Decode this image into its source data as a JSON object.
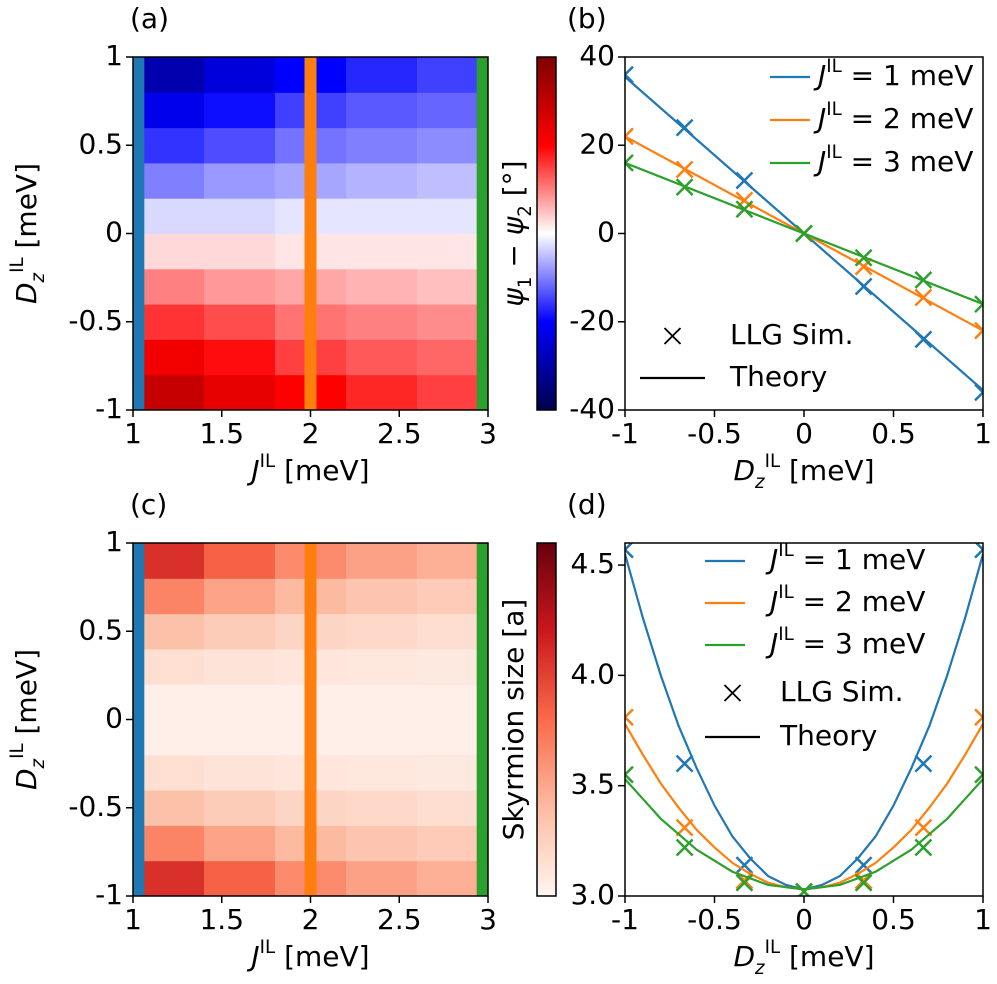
{
  "chart_data": [
    {
      "type": "heatmap",
      "label": "(a)",
      "x": [
        1.2,
        1.6,
        2.0,
        2.4,
        2.8
      ],
      "y": [
        -0.9,
        -0.7,
        -0.5,
        -0.3,
        -0.1,
        0.1,
        0.3,
        0.5,
        0.7,
        0.9
      ],
      "z": [
        [
          29,
          24,
          20,
          17,
          15
        ],
        [
          22,
          19,
          15,
          13,
          12
        ],
        [
          16,
          14,
          11,
          10,
          9
        ],
        [
          10,
          8,
          7,
          6,
          5
        ],
        [
          3,
          3,
          2,
          2,
          2
        ],
        [
          -3,
          -3,
          -2,
          -2,
          -2
        ],
        [
          -10,
          -8,
          -7,
          -6,
          -5
        ],
        [
          -16,
          -14,
          -11,
          -10,
          -9
        ],
        [
          -22,
          -19,
          -15,
          -13,
          -12
        ],
        [
          -29,
          -24,
          -20,
          -17,
          -15
        ]
      ],
      "zlim": [
        -40,
        40
      ],
      "cmap": "seismic",
      "xlim": [
        1,
        3
      ],
      "ylim": [
        -1,
        1
      ],
      "xticks": [
        1,
        1.5,
        2,
        2.5,
        3
      ],
      "yticks": [
        -1,
        -0.5,
        0,
        0.5,
        1
      ],
      "xlabel": [
        {
          "text": "J",
          "italic": true
        },
        {
          "text": "IL",
          "pos": "sup"
        },
        {
          "text": " [meV]"
        }
      ],
      "ylabel": [
        {
          "text": "D",
          "italic": true
        },
        {
          "text": "z",
          "italic": true,
          "pos": "sub"
        },
        {
          "text": "IL",
          "pos": "sup"
        },
        {
          "text": " [meV]"
        }
      ],
      "colorbar_label": [
        {
          "text": "ψ",
          "italic": true
        },
        {
          "text": "1",
          "pos": "sub"
        },
        {
          "text": " − "
        },
        {
          "text": "ψ",
          "italic": true
        },
        {
          "text": "2",
          "pos": "sub"
        },
        {
          "text": " [°]"
        }
      ],
      "vlines": [
        {
          "x": 1.03,
          "color": "#1f77b4"
        },
        {
          "x": 2.0,
          "color": "#ff7f0e"
        },
        {
          "x": 2.97,
          "color": "#2ca02c"
        }
      ]
    },
    {
      "type": "line",
      "label": "(b)",
      "x": [
        -1,
        1
      ],
      "sim_x": [
        -1,
        -0.667,
        -0.333,
        0,
        0.333,
        0.667,
        1
      ],
      "series": [
        {
          "name": [
            {
              "text": "J",
              "italic": true
            },
            {
              "text": "IL",
              "pos": "sup"
            },
            {
              "text": " = 1 meV"
            }
          ],
          "color": "#1f77b4",
          "values": [
            35.5,
            -35.5
          ],
          "sim_values": [
            36,
            24,
            12,
            0,
            -12,
            -24,
            -36
          ]
        },
        {
          "name": [
            {
              "text": "J",
              "italic": true
            },
            {
              "text": "IL",
              "pos": "sup"
            },
            {
              "text": " = 2 meV"
            }
          ],
          "color": "#ff7f0e",
          "values": [
            22,
            -22
          ],
          "sim_values": [
            22,
            14.5,
            7.5,
            0,
            -7.5,
            -14.5,
            -22
          ]
        },
        {
          "name": [
            {
              "text": "J",
              "italic": true
            },
            {
              "text": "IL",
              "pos": "sup"
            },
            {
              "text": " = 3 meV"
            }
          ],
          "color": "#2ca02c",
          "values": [
            16,
            -16
          ],
          "sim_values": [
            16,
            10.5,
            5.5,
            0,
            -5.5,
            -10.5,
            -16
          ]
        }
      ],
      "style_legend": [
        {
          "label": "LLG Sim.",
          "marker": "x"
        },
        {
          "label": "Theory",
          "marker": "line"
        }
      ],
      "xlim": [
        -1,
        1
      ],
      "ylim": [
        -40,
        40
      ],
      "xticks": [
        -1,
        -0.5,
        0,
        0.5,
        1
      ],
      "yticks": [
        -40,
        -20,
        0,
        20,
        40
      ],
      "xlabel": [
        {
          "text": "D",
          "italic": true
        },
        {
          "text": "z",
          "italic": true,
          "pos": "sub"
        },
        {
          "text": "IL",
          "pos": "sup"
        },
        {
          "text": " [meV]"
        }
      ]
    },
    {
      "type": "heatmap",
      "label": "(c)",
      "x": [
        1.2,
        1.6,
        2.0,
        2.4,
        2.8
      ],
      "y": [
        -0.9,
        -0.7,
        -0.5,
        -0.3,
        -0.1,
        0.1,
        0.3,
        0.5,
        0.7,
        0.9
      ],
      "z": [
        [
          4.08,
          3.84,
          3.64,
          3.53,
          3.46
        ],
        [
          3.67,
          3.52,
          3.4,
          3.33,
          3.29
        ],
        [
          3.36,
          3.28,
          3.22,
          3.19,
          3.16
        ],
        [
          3.15,
          3.12,
          3.1,
          3.09,
          3.08
        ],
        [
          3.04,
          3.04,
          3.04,
          3.04,
          3.04
        ],
        [
          3.04,
          3.04,
          3.04,
          3.04,
          3.04
        ],
        [
          3.15,
          3.12,
          3.1,
          3.09,
          3.08
        ],
        [
          3.36,
          3.28,
          3.22,
          3.19,
          3.16
        ],
        [
          3.67,
          3.52,
          3.4,
          3.33,
          3.29
        ],
        [
          4.08,
          3.84,
          3.64,
          3.53,
          3.46
        ]
      ],
      "zlim": [
        3.0,
        4.6
      ],
      "cmap": "Reds",
      "xlim": [
        1,
        3
      ],
      "ylim": [
        -1,
        1
      ],
      "xticks": [
        1,
        1.5,
        2,
        2.5,
        3
      ],
      "yticks": [
        -1,
        -0.5,
        0,
        0.5,
        1
      ],
      "xlabel": [
        {
          "text": "J",
          "italic": true
        },
        {
          "text": "IL",
          "pos": "sup"
        },
        {
          "text": " [meV]"
        }
      ],
      "ylabel": [
        {
          "text": "D",
          "italic": true
        },
        {
          "text": "z",
          "italic": true,
          "pos": "sub"
        },
        {
          "text": "IL",
          "pos": "sup"
        },
        {
          "text": " [meV]"
        }
      ],
      "colorbar_label": [
        {
          "text": "Skyrmion size [a]"
        }
      ],
      "vlines": [
        {
          "x": 1.03,
          "color": "#1f77b4"
        },
        {
          "x": 2.0,
          "color": "#ff7f0e"
        },
        {
          "x": 2.97,
          "color": "#2ca02c"
        }
      ]
    },
    {
      "type": "line",
      "label": "(d)",
      "x": [
        -1,
        -0.9,
        -0.8,
        -0.7,
        -0.6,
        -0.5,
        -0.4,
        -0.3,
        -0.2,
        -0.1,
        0,
        0.1,
        0.2,
        0.3,
        0.4,
        0.5,
        0.6,
        0.7,
        0.8,
        0.9,
        1
      ],
      "sim_x": [
        -1,
        -0.667,
        -0.333,
        0,
        0.333,
        0.667,
        1
      ],
      "series": [
        {
          "name": [
            {
              "text": "J",
              "italic": true
            },
            {
              "text": "IL",
              "pos": "sup"
            },
            {
              "text": " = 1 meV"
            }
          ],
          "color": "#1f77b4",
          "values": [
            4.55,
            4.26,
            4.0,
            3.77,
            3.58,
            3.41,
            3.27,
            3.17,
            3.09,
            3.05,
            3.03,
            3.05,
            3.09,
            3.17,
            3.27,
            3.41,
            3.58,
            3.77,
            4.0,
            4.26,
            4.55
          ],
          "sim_values": [
            4.57,
            3.6,
            3.14,
            3.02,
            3.14,
            3.6,
            4.57
          ]
        },
        {
          "name": [
            {
              "text": "J",
              "italic": true
            },
            {
              "text": "IL",
              "pos": "sup"
            },
            {
              "text": " = 2 meV"
            }
          ],
          "color": "#ff7f0e",
          "values": [
            3.78,
            3.64,
            3.51,
            3.4,
            3.3,
            3.22,
            3.15,
            3.1,
            3.06,
            3.04,
            3.03,
            3.04,
            3.06,
            3.1,
            3.15,
            3.22,
            3.3,
            3.4,
            3.51,
            3.64,
            3.78
          ],
          "sim_values": [
            3.81,
            3.31,
            3.07,
            3.02,
            3.07,
            3.31,
            3.81
          ]
        },
        {
          "name": [
            {
              "text": "J",
              "italic": true
            },
            {
              "text": "IL",
              "pos": "sup"
            },
            {
              "text": " = 3 meV"
            }
          ],
          "color": "#2ca02c",
          "values": [
            3.53,
            3.44,
            3.35,
            3.28,
            3.21,
            3.16,
            3.11,
            3.08,
            3.05,
            3.04,
            3.03,
            3.04,
            3.05,
            3.08,
            3.11,
            3.16,
            3.21,
            3.28,
            3.35,
            3.44,
            3.53
          ],
          "sim_values": [
            3.55,
            3.22,
            3.06,
            3.02,
            3.06,
            3.22,
            3.55
          ]
        }
      ],
      "style_legend": [
        {
          "label": "LLG Sim.",
          "marker": "x"
        },
        {
          "label": "Theory",
          "marker": "line"
        }
      ],
      "xlim": [
        -1,
        1
      ],
      "ylim": [
        3.0,
        4.6
      ],
      "xticks": [
        -1,
        -0.5,
        0,
        0.5,
        1
      ],
      "yticks": [
        {
          "value": 3,
          "label": "3.0"
        },
        3.5,
        {
          "value": 4,
          "label": "4.0"
        },
        4.5
      ],
      "xlabel": [
        {
          "text": "D",
          "italic": true
        },
        {
          "text": "z",
          "italic": true,
          "pos": "sub"
        },
        {
          "text": "IL",
          "pos": "sup"
        },
        {
          "text": " [meV]"
        }
      ]
    }
  ]
}
